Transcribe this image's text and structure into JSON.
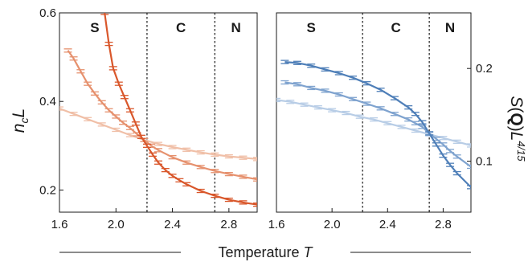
{
  "x_axis_label": "Temperature",
  "x_axis_symbol": "T",
  "chart_data": [
    {
      "type": "line",
      "ylabel": "n_cL",
      "xlim": [
        1.6,
        3.0
      ],
      "ylim": [
        0.15,
        0.6
      ],
      "x_ticks": [
        1.6,
        2.0,
        2.4,
        2.8
      ],
      "y_ticks": [
        0.2,
        0.4,
        0.6
      ],
      "y_tick_labels": [
        "0.2",
        "0.4",
        "0.6"
      ],
      "x_tick_labels": [
        "1.6",
        "2.0",
        "2.4",
        "2.8"
      ],
      "phase_boundaries": [
        2.22,
        2.7
      ],
      "regions": [
        {
          "label": "S",
          "x": 1.85
        },
        {
          "label": "C",
          "x": 2.46
        },
        {
          "label": "N",
          "x": 2.85
        }
      ],
      "series": [
        {
          "color": "#d9572b",
          "x": [
            1.92,
            1.95,
            1.98,
            2.02,
            2.06,
            2.1,
            2.14,
            2.18,
            2.22,
            2.26,
            2.3,
            2.35,
            2.4,
            2.45,
            2.5,
            2.6,
            2.7,
            2.8,
            2.9,
            3.0
          ],
          "y": [
            0.6,
            0.53,
            0.475,
            0.44,
            0.41,
            0.38,
            0.35,
            0.32,
            0.3,
            0.28,
            0.262,
            0.245,
            0.232,
            0.222,
            0.213,
            0.198,
            0.187,
            0.178,
            0.172,
            0.167
          ]
        },
        {
          "color": "#e6916e",
          "x": [
            1.66,
            1.7,
            1.75,
            1.8,
            1.85,
            1.9,
            1.95,
            2.0,
            2.05,
            2.1,
            2.15,
            2.2,
            2.25,
            2.3,
            2.4,
            2.5,
            2.6,
            2.7,
            2.8,
            2.9,
            3.0
          ],
          "y": [
            0.515,
            0.497,
            0.468,
            0.44,
            0.418,
            0.398,
            0.38,
            0.366,
            0.352,
            0.34,
            0.326,
            0.313,
            0.3,
            0.29,
            0.274,
            0.262,
            0.252,
            0.243,
            0.236,
            0.23,
            0.224
          ]
        },
        {
          "color": "#f0bfa7",
          "x": [
            1.6,
            1.7,
            1.8,
            1.9,
            2.0,
            2.1,
            2.2,
            2.3,
            2.4,
            2.5,
            2.6,
            2.7,
            2.8,
            2.9,
            3.0
          ],
          "y": [
            0.384,
            0.372,
            0.36,
            0.348,
            0.336,
            0.324,
            0.313,
            0.304,
            0.297,
            0.291,
            0.285,
            0.28,
            0.276,
            0.273,
            0.27
          ]
        }
      ]
    },
    {
      "type": "line",
      "ylabel": "S(Q)L^{4/15}",
      "xlim": [
        1.6,
        3.0
      ],
      "ylim": [
        0.045,
        0.26
      ],
      "x_ticks": [
        1.6,
        2.0,
        2.4,
        2.8
      ],
      "y_ticks": [
        0.1,
        0.2
      ],
      "y_tick_labels": [
        "0.1",
        "0.2"
      ],
      "x_tick_labels": [
        "1.6",
        "2.0",
        "2.4",
        "2.8"
      ],
      "phase_boundaries": [
        2.22,
        2.7
      ],
      "regions": [
        {
          "label": "S",
          "x": 1.85
        },
        {
          "label": "C",
          "x": 2.46
        },
        {
          "label": "N",
          "x": 2.85
        }
      ],
      "series": [
        {
          "color": "#4f7fb8",
          "x": [
            1.66,
            1.75,
            1.85,
            1.95,
            2.05,
            2.15,
            2.25,
            2.35,
            2.45,
            2.55,
            2.6,
            2.65,
            2.7,
            2.75,
            2.8,
            2.85,
            2.9,
            3.0
          ],
          "y": [
            0.207,
            0.206,
            0.203,
            0.199,
            0.195,
            0.19,
            0.184,
            0.177,
            0.168,
            0.158,
            0.151,
            0.142,
            0.13,
            0.118,
            0.106,
            0.096,
            0.087,
            0.072
          ]
        },
        {
          "color": "#7fa3cf",
          "x": [
            1.66,
            1.75,
            1.85,
            1.95,
            2.05,
            2.15,
            2.25,
            2.35,
            2.45,
            2.55,
            2.6,
            2.65,
            2.7,
            2.75,
            2.8,
            2.85,
            2.9,
            3.0
          ],
          "y": [
            0.185,
            0.183,
            0.179,
            0.176,
            0.172,
            0.167,
            0.162,
            0.157,
            0.151,
            0.145,
            0.141,
            0.137,
            0.13,
            0.124,
            0.118,
            0.111,
            0.105,
            0.094
          ]
        },
        {
          "color": "#b8cde6",
          "x": [
            1.6,
            1.7,
            1.8,
            1.9,
            2.0,
            2.1,
            2.2,
            2.3,
            2.4,
            2.5,
            2.6,
            2.7,
            2.8,
            2.9,
            3.0
          ],
          "y": [
            0.166,
            0.164,
            0.161,
            0.158,
            0.155,
            0.152,
            0.148,
            0.145,
            0.141,
            0.137,
            0.133,
            0.129,
            0.125,
            0.121,
            0.117
          ]
        }
      ]
    }
  ]
}
